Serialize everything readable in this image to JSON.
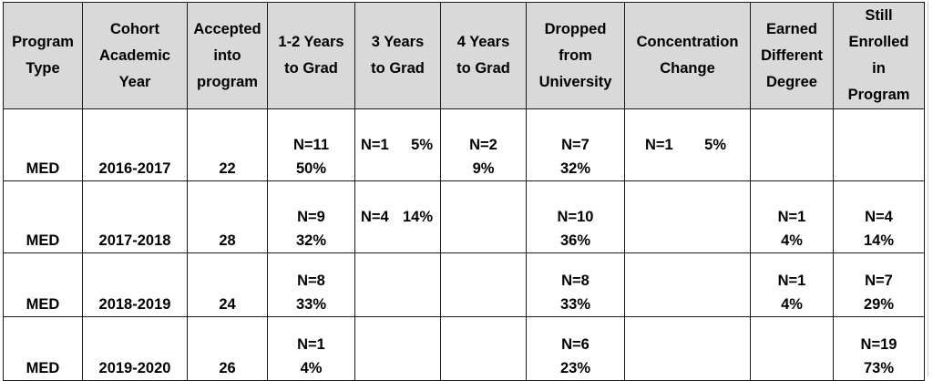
{
  "headers": [
    "Program\nType",
    "Cohort\nAcademic\nYear",
    "Accepted\ninto\nprogram",
    "1-2 Years\nto Grad",
    "3 Years\nto Grad",
    "4 Years\nto Grad",
    "Dropped\nfrom\nUniversity",
    "Concentration\nChange",
    "Earned\nDifferent\nDegree",
    "Still\nEnrolled\nin\nProgram"
  ],
  "rows": [
    {
      "program_type": "MED",
      "cohort_year": "2016-2017",
      "accepted": "22",
      "grad_1_2": "N=11\n50%",
      "grad_3_n": "N=1",
      "grad_3_pct": "5%",
      "grad_4": "N=2\n9%",
      "dropped": "N=7\n32%",
      "conc_n": "N=1",
      "conc_pct": "5%",
      "diff_degree": "",
      "still_enrolled": ""
    },
    {
      "program_type": "MED",
      "cohort_year": "2017-2018",
      "accepted": "28",
      "grad_1_2": "N=9\n32%",
      "grad_3_n": "N=4",
      "grad_3_pct": "14%",
      "grad_4": "",
      "dropped": "N=10\n36%",
      "conc_n": "",
      "conc_pct": "",
      "diff_degree": "N=1\n4%",
      "still_enrolled": "N=4\n14%"
    },
    {
      "program_type": "MED",
      "cohort_year": "2018-2019",
      "accepted": "24",
      "grad_1_2": "N=8\n33%",
      "grad_3_n": "",
      "grad_3_pct": "",
      "grad_4": "",
      "dropped": "N=8\n33%",
      "conc_n": "",
      "conc_pct": "",
      "diff_degree": "N=1\n4%",
      "still_enrolled": "N=7\n29%"
    },
    {
      "program_type": "MED",
      "cohort_year": "2019-2020",
      "accepted": "26",
      "grad_1_2": "N=1\n4%",
      "grad_3_n": "",
      "grad_3_pct": "",
      "grad_4": "",
      "dropped": "N=6\n23%",
      "conc_n": "",
      "conc_pct": "",
      "diff_degree": "",
      "still_enrolled": "N=19\n73%"
    }
  ],
  "colors": {
    "header_bg": "#d9d9d9",
    "border": "#1a1a1a",
    "cell_bg": "#ffffff"
  }
}
